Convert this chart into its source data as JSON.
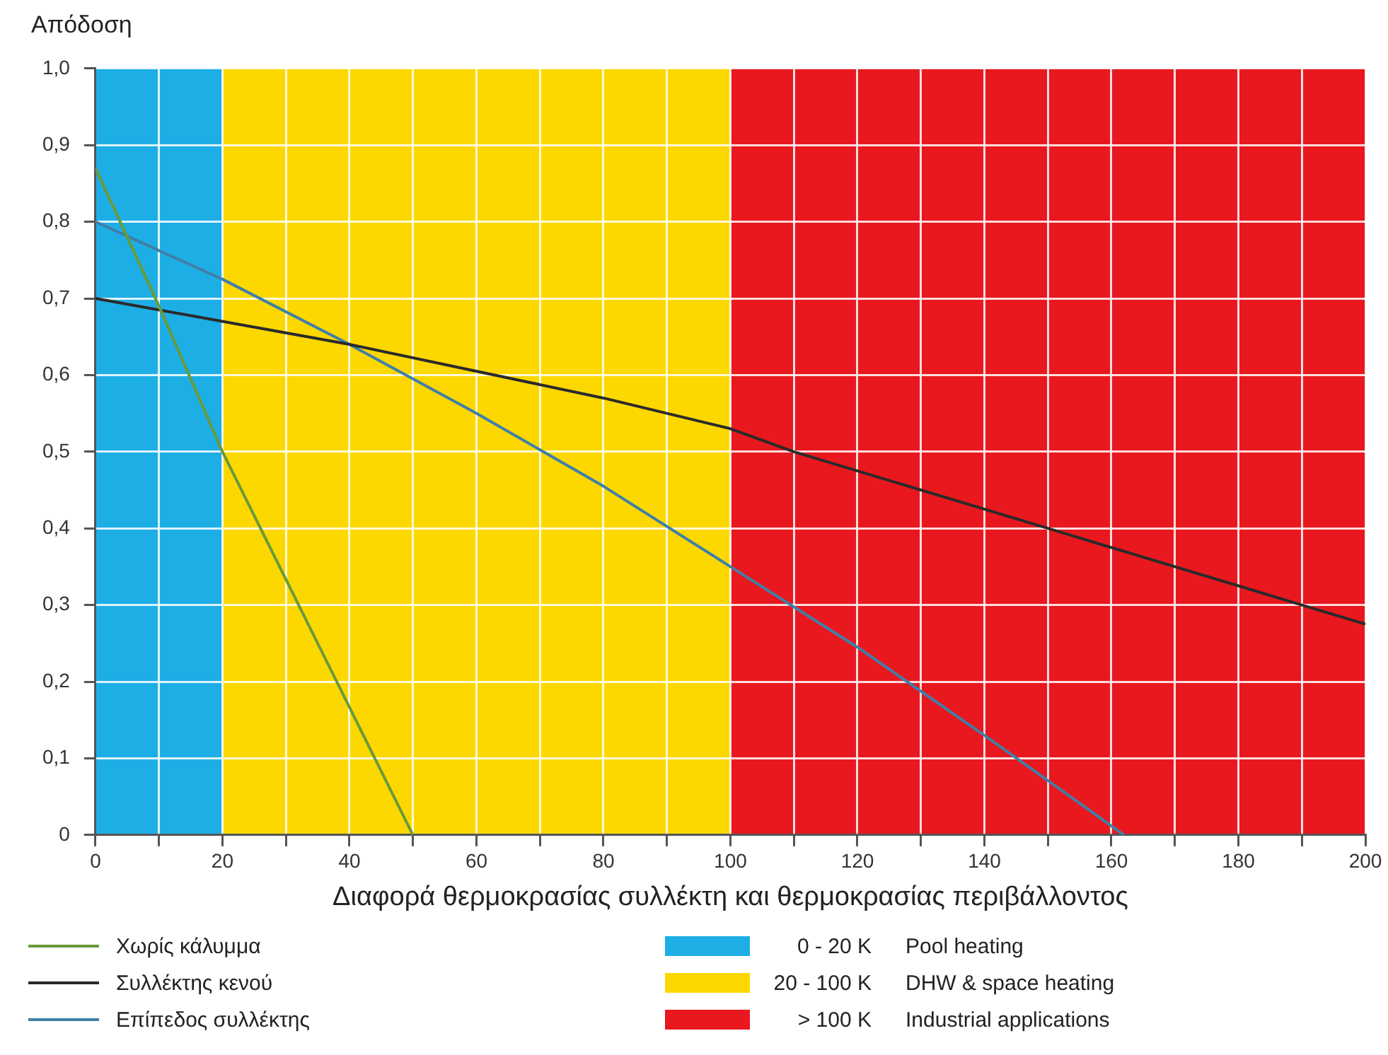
{
  "chart_data": {
    "type": "line",
    "ylabel": "Απόδοση",
    "xlabel": "Διαφορά θερμοκρασίας συλλέκτη και θερμοκρασίας περιβάλλοντος",
    "xlim": [
      0,
      200
    ],
    "ylim": [
      0,
      1
    ],
    "xticks": [
      0,
      {
        "value": 10,
        "label": null
      },
      20,
      {
        "value": 30,
        "label": null
      },
      40,
      {
        "value": 50,
        "label": null
      },
      60,
      {
        "value": 70,
        "label": null
      },
      80,
      {
        "value": 90,
        "label": null
      },
      100,
      {
        "value": 110,
        "label": null
      },
      120,
      {
        "value": 130,
        "label": null
      },
      140,
      {
        "value": 150,
        "label": null
      },
      160,
      {
        "value": 170,
        "label": null
      },
      180,
      {
        "value": 190,
        "label": null
      },
      200
    ],
    "yticks": [
      0,
      {
        "value": 0.1,
        "label": "0,1"
      },
      {
        "value": 0.2,
        "label": "0,2"
      },
      {
        "value": 0.3,
        "label": "0,3"
      },
      {
        "value": 0.4,
        "label": "0,4"
      },
      {
        "value": 0.5,
        "label": "0,5"
      },
      {
        "value": 0.6,
        "label": "0,6"
      },
      {
        "value": 0.7,
        "label": "0,7"
      },
      {
        "value": 0.8,
        "label": "0,8"
      },
      {
        "value": 0.9,
        "label": "0,9"
      },
      {
        "value": 1,
        "label": "1,0"
      }
    ],
    "grid": true,
    "legend": "bottom",
    "marker": "none",
    "line_style": "solid",
    "series": [
      {
        "name": "Χωρίς κάλυμμα",
        "color": "#6a9a3a",
        "x": [
          0,
          10,
          20,
          50
        ],
        "values": [
          0.87,
          0.69,
          0.5,
          0
        ]
      },
      {
        "name": "Συλλέκτης κενού",
        "color": "#2a2a2a",
        "x": [
          0,
          20,
          40,
          60,
          80,
          100,
          110,
          150,
          190,
          200
        ],
        "values": [
          0.7,
          0.67,
          0.64,
          0.605,
          0.57,
          0.53,
          0.5,
          0.4,
          0.3,
          0.275
        ]
      },
      {
        "name": "Επίπεδος συλλέκτης",
        "color": "#3f7fa8",
        "x": [
          0,
          20,
          40,
          60,
          80,
          100,
          120,
          140,
          162
        ],
        "values": [
          0.8,
          0.725,
          0.64,
          0.55,
          0.455,
          0.35,
          0.245,
          0.13,
          0
        ]
      }
    ],
    "bands": [
      {
        "axis": "x",
        "from": 0,
        "to": 20,
        "label": "0 - 20 K",
        "color": "#1eaee6"
      },
      {
        "axis": "x",
        "from": 20,
        "to": 100,
        "label": "20 - 100 K",
        "color": "#fcd800"
      },
      {
        "axis": "x",
        "from": 100,
        "to": 200,
        "label": "> 100 K",
        "color": "#e8181e"
      }
    ],
    "annotations": [
      "Pool heating",
      "DHW & space heating",
      "Industrial applications"
    ]
  }
}
